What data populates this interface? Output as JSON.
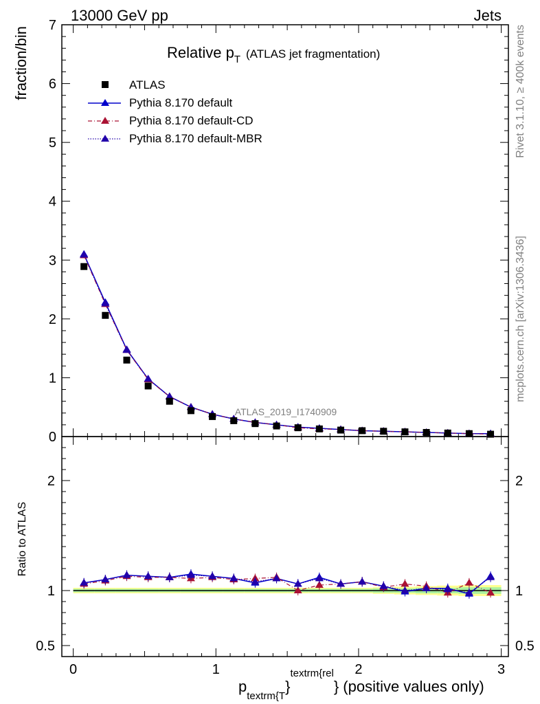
{
  "header": {
    "left": "13000 GeV pp",
    "right": "Jets"
  },
  "side_text": {
    "top": "Rivet 3.1.10, ≥ 400k events",
    "bottom": "mcplots.cern.ch [arXiv:1306.3436]"
  },
  "title": {
    "main": "Relative p",
    "sub": "T",
    "paren": "(ATLAS jet fragmentation)"
  },
  "watermark": "ATLAS_2019_I1740909",
  "xlabel": {
    "p": "p",
    "sub": "textrm{T",
    "sup": "textrm{rel",
    "rest": "} (positive values only)"
  },
  "colors": {
    "atlas": "#000000",
    "default": "#0000cc",
    "cd": "#aa1133",
    "mbr": "#2200aa",
    "band_inner": "#aaf0a0",
    "band_outer": "#ffff90"
  },
  "chart_data": [
    {
      "type": "line",
      "ylabel": "fraction/bin",
      "xlim": [
        -0.08,
        3.05
      ],
      "ylim": [
        0,
        7
      ],
      "x_ticks": [
        "0",
        "1",
        "2",
        "3"
      ],
      "y_ticks": [
        "0",
        "1",
        "2",
        "3",
        "4",
        "5",
        "6",
        "7"
      ],
      "x": [
        0.075,
        0.225,
        0.375,
        0.525,
        0.675,
        0.825,
        0.975,
        1.125,
        1.275,
        1.425,
        1.575,
        1.725,
        1.875,
        2.025,
        2.175,
        2.325,
        2.475,
        2.625,
        2.775,
        2.925
      ],
      "legend": [
        "ATLAS",
        "Pythia 8.170 default",
        "Pythia 8.170 default-CD",
        "Pythia 8.170 default-MBR"
      ],
      "series": [
        {
          "name": "ATLAS",
          "values": [
            2.89,
            2.06,
            1.3,
            0.86,
            0.6,
            0.44,
            0.34,
            0.27,
            0.22,
            0.18,
            0.15,
            0.13,
            0.11,
            0.1,
            0.09,
            0.08,
            0.07,
            0.06,
            0.05,
            0.04
          ]
        },
        {
          "name": "Pythia 8.170 default",
          "values": [
            3.1,
            2.28,
            1.48,
            0.98,
            0.68,
            0.5,
            0.38,
            0.3,
            0.24,
            0.2,
            0.16,
            0.14,
            0.12,
            0.1,
            0.09,
            0.08,
            0.07,
            0.06,
            0.05,
            0.05
          ]
        },
        {
          "name": "Pythia 8.170 default-CD",
          "values": [
            3.08,
            2.25,
            1.47,
            0.97,
            0.68,
            0.5,
            0.38,
            0.3,
            0.24,
            0.2,
            0.15,
            0.13,
            0.12,
            0.1,
            0.09,
            0.08,
            0.07,
            0.06,
            0.05,
            0.04
          ]
        },
        {
          "name": "Pythia 8.170 default-MBR",
          "values": [
            3.09,
            2.26,
            1.47,
            0.98,
            0.68,
            0.5,
            0.38,
            0.3,
            0.24,
            0.2,
            0.16,
            0.14,
            0.12,
            0.1,
            0.09,
            0.08,
            0.07,
            0.06,
            0.05,
            0.05
          ]
        }
      ]
    },
    {
      "type": "line",
      "ylabel": "Ratio to ATLAS",
      "xlim": [
        -0.08,
        3.05
      ],
      "ylim": [
        0.4,
        2.4
      ],
      "y_ticks": [
        "0.5",
        "1",
        "2"
      ],
      "y_tick_values": [
        0.5,
        1,
        2
      ],
      "x": [
        0.075,
        0.225,
        0.375,
        0.525,
        0.675,
        0.825,
        0.975,
        1.125,
        1.275,
        1.425,
        1.575,
        1.725,
        1.875,
        2.025,
        2.175,
        2.325,
        2.475,
        2.625,
        2.775,
        2.925
      ],
      "series": [
        {
          "name": "Pythia 8.170 default",
          "values": [
            1.07,
            1.1,
            1.14,
            1.13,
            1.12,
            1.15,
            1.13,
            1.11,
            1.07,
            1.11,
            1.06,
            1.12,
            1.06,
            1.08,
            1.04,
            0.99,
            1.02,
            1.02,
            0.97,
            1.13
          ]
        },
        {
          "name": "Pythia 8.170 default-CD",
          "values": [
            1.06,
            1.09,
            1.13,
            1.12,
            1.12,
            1.11,
            1.12,
            1.1,
            1.11,
            1.12,
            1.0,
            1.05,
            1.06,
            1.08,
            1.03,
            1.06,
            1.04,
            0.98,
            1.07,
            0.98
          ]
        },
        {
          "name": "Pythia 8.170 default-MBR",
          "values": [
            1.07,
            1.1,
            1.14,
            1.13,
            1.12,
            1.14,
            1.13,
            1.11,
            1.08,
            1.11,
            1.06,
            1.11,
            1.06,
            1.08,
            1.04,
            1.0,
            1.02,
            1.01,
            0.98,
            1.12
          ]
        }
      ],
      "band": {
        "inner": [
          0.015,
          0.015,
          0.015,
          0.015,
          0.015,
          0.015,
          0.015,
          0.015,
          0.015,
          0.015,
          0.015,
          0.015,
          0.015,
          0.015,
          0.02,
          0.02,
          0.025,
          0.025,
          0.03,
          0.03
        ],
        "outer": [
          0.025,
          0.025,
          0.025,
          0.025,
          0.025,
          0.025,
          0.025,
          0.025,
          0.025,
          0.025,
          0.025,
          0.025,
          0.025,
          0.025,
          0.03,
          0.035,
          0.04,
          0.045,
          0.05,
          0.05
        ]
      }
    }
  ]
}
